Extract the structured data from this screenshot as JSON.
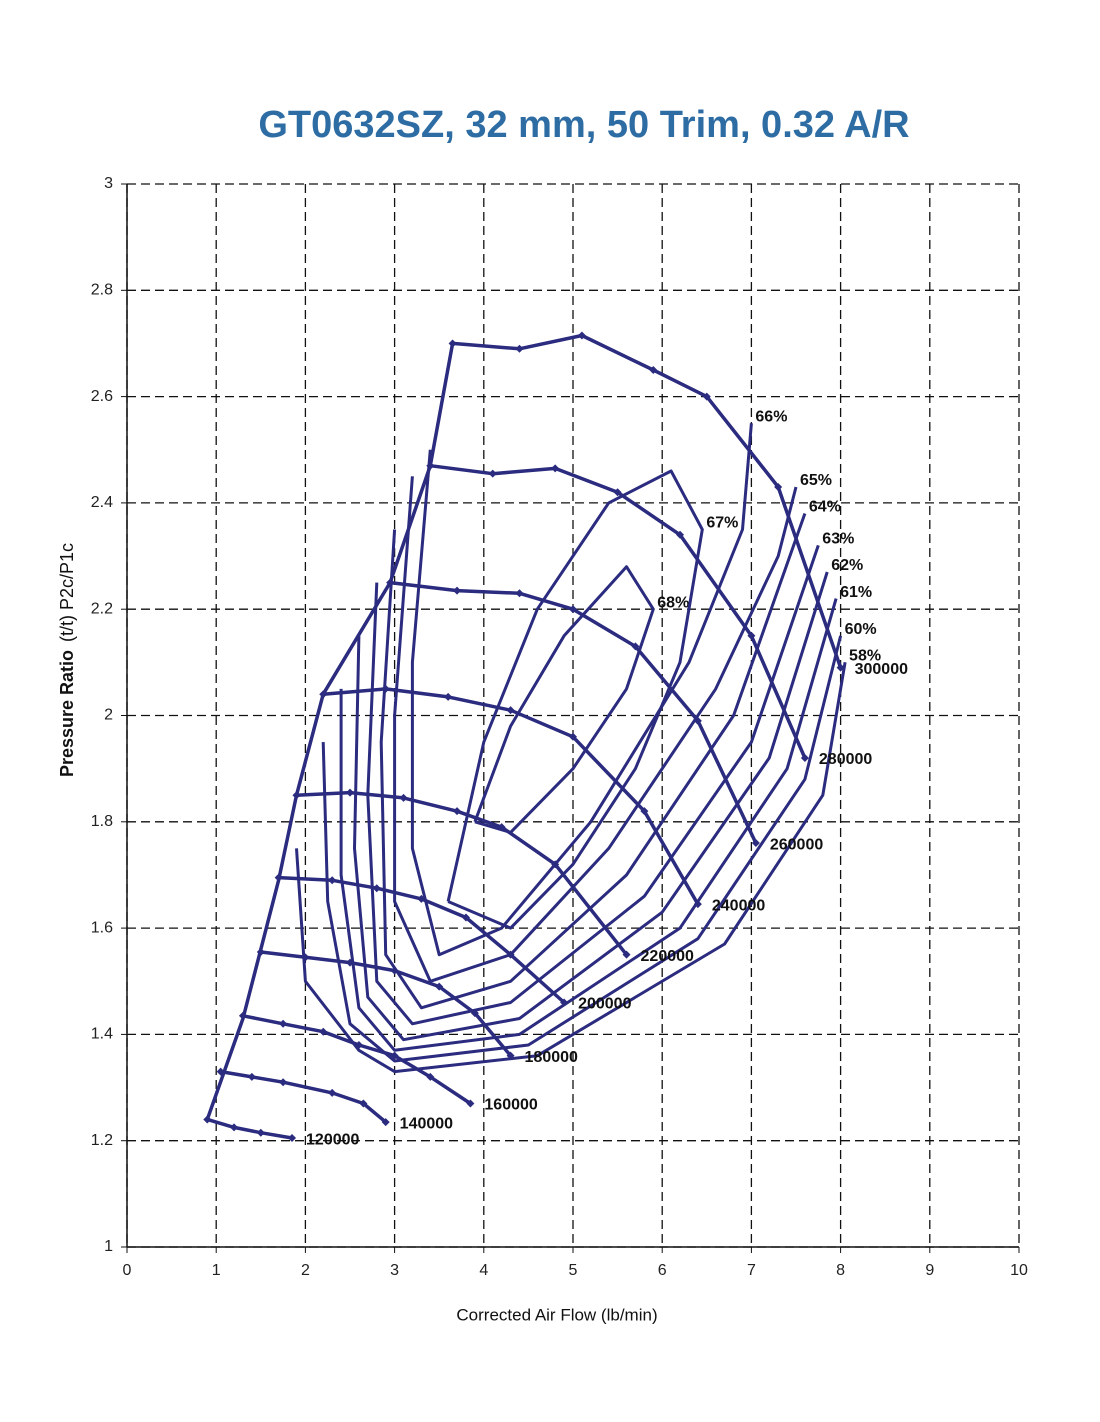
{
  "chart_data": {
    "type": "line",
    "title": "GT0632SZ, 32 mm, 50 Trim, 0.32 A/R",
    "xlabel": "Corrected Air Flow (lb/min)",
    "ylabel": "Pressure Ratio",
    "ylabel_note": "(t/t) P2c/P1c",
    "xlim": [
      0,
      10
    ],
    "ylim": [
      1,
      3
    ],
    "xticks": [
      0,
      1,
      2,
      3,
      4,
      5,
      6,
      7,
      8,
      9,
      10
    ],
    "yticks": [
      1,
      1.2,
      1.4,
      1.6,
      1.8,
      2,
      2.2,
      2.4,
      2.6,
      2.8,
      3
    ],
    "grid": true,
    "color": "#2b2b7f",
    "surge_line": {
      "x": [
        0.9,
        1.3,
        1.7,
        1.9,
        2.2,
        2.95,
        3.4,
        3.65
      ],
      "y": [
        1.24,
        1.43,
        1.69,
        1.85,
        2.04,
        2.25,
        2.47,
        2.7
      ]
    },
    "series": [
      {
        "name": "120000",
        "x": [
          0.9,
          1.2,
          1.5,
          1.85
        ],
        "y": [
          1.24,
          1.225,
          1.215,
          1.205
        ]
      },
      {
        "name": "140000",
        "x": [
          1.05,
          1.4,
          1.75,
          2.3,
          2.65,
          2.9
        ],
        "y": [
          1.33,
          1.32,
          1.31,
          1.29,
          1.27,
          1.235
        ]
      },
      {
        "name": "160000",
        "x": [
          1.3,
          1.75,
          2.2,
          2.6,
          3.0,
          3.4,
          3.85
        ],
        "y": [
          1.435,
          1.42,
          1.405,
          1.38,
          1.36,
          1.32,
          1.27
        ]
      },
      {
        "name": "180000",
        "x": [
          1.5,
          2.0,
          2.5,
          3.0,
          3.5,
          3.9,
          4.3
        ],
        "y": [
          1.555,
          1.545,
          1.535,
          1.52,
          1.49,
          1.44,
          1.36
        ]
      },
      {
        "name": "200000",
        "x": [
          1.7,
          2.3,
          2.8,
          3.3,
          3.8,
          4.3,
          4.9
        ],
        "y": [
          1.695,
          1.69,
          1.675,
          1.655,
          1.62,
          1.55,
          1.46
        ]
      },
      {
        "name": "220000",
        "x": [
          1.9,
          2.5,
          3.1,
          3.7,
          4.2,
          4.8,
          5.6
        ],
        "y": [
          1.85,
          1.855,
          1.845,
          1.82,
          1.79,
          1.72,
          1.55
        ]
      },
      {
        "name": "240000",
        "x": [
          2.2,
          2.9,
          3.6,
          4.3,
          5.0,
          5.8,
          6.4
        ],
        "y": [
          2.04,
          2.05,
          2.035,
          2.01,
          1.96,
          1.82,
          1.645
        ]
      },
      {
        "name": "260000",
        "x": [
          2.95,
          3.7,
          4.4,
          5.0,
          5.7,
          6.4,
          7.05
        ],
        "y": [
          2.25,
          2.235,
          2.23,
          2.2,
          2.13,
          1.99,
          1.76
        ]
      },
      {
        "name": "280000",
        "x": [
          3.4,
          4.1,
          4.8,
          5.5,
          6.2,
          7.0,
          7.6
        ],
        "y": [
          2.47,
          2.455,
          2.465,
          2.42,
          2.34,
          2.15,
          1.92
        ]
      },
      {
        "name": "300000",
        "x": [
          3.65,
          4.4,
          5.1,
          5.9,
          6.5,
          7.3,
          8.0
        ],
        "y": [
          2.7,
          2.69,
          2.715,
          2.65,
          2.6,
          2.43,
          2.09
        ]
      }
    ],
    "efficiency_contours": [
      {
        "label": "68%",
        "x": [
          3.9,
          4.3,
          4.9,
          5.6,
          5.9,
          5.6,
          5.0,
          4.3,
          3.9
        ],
        "y": [
          1.8,
          1.98,
          2.15,
          2.28,
          2.2,
          2.05,
          1.9,
          1.78,
          1.8
        ]
      },
      {
        "label": "67%",
        "x": [
          3.6,
          4.0,
          4.6,
          5.4,
          6.1,
          6.45,
          6.2,
          5.7,
          5.0,
          4.3,
          3.6
        ],
        "y": [
          1.65,
          1.95,
          2.2,
          2.4,
          2.46,
          2.35,
          2.1,
          1.9,
          1.72,
          1.6,
          1.65
        ]
      },
      {
        "label": "66%",
        "x": [
          3.4,
          3.2,
          3.2,
          3.5,
          4.2,
          5.2,
          6.3,
          6.9,
          7.0
        ],
        "y": [
          2.5,
          2.1,
          1.75,
          1.55,
          1.6,
          1.8,
          2.1,
          2.35,
          2.55
        ]
      },
      {
        "label": "65%",
        "x": [
          3.2,
          3.0,
          3.0,
          3.4,
          4.3,
          5.4,
          6.6,
          7.3,
          7.5
        ],
        "y": [
          2.45,
          2.0,
          1.65,
          1.5,
          1.55,
          1.75,
          2.05,
          2.3,
          2.43
        ]
      },
      {
        "label": "64%",
        "x": [
          3.0,
          2.85,
          2.9,
          3.3,
          4.3,
          5.6,
          6.8,
          7.6
        ],
        "y": [
          2.35,
          1.95,
          1.55,
          1.45,
          1.5,
          1.7,
          2.0,
          2.38
        ]
      },
      {
        "label": "63%",
        "x": [
          2.8,
          2.7,
          2.8,
          3.2,
          4.3,
          5.8,
          7.0,
          7.75
        ],
        "y": [
          2.25,
          1.85,
          1.5,
          1.42,
          1.46,
          1.66,
          1.95,
          2.32
        ]
      },
      {
        "label": "62%",
        "x": [
          2.6,
          2.55,
          2.7,
          3.1,
          4.4,
          6.0,
          7.2,
          7.85
        ],
        "y": [
          2.15,
          1.75,
          1.47,
          1.39,
          1.43,
          1.63,
          1.92,
          2.27
        ]
      },
      {
        "label": "61%",
        "x": [
          2.4,
          2.4,
          2.6,
          3.0,
          4.4,
          6.2,
          7.4,
          7.95
        ],
        "y": [
          2.05,
          1.7,
          1.45,
          1.37,
          1.4,
          1.6,
          1.9,
          2.22
        ]
      },
      {
        "label": "60%",
        "x": [
          2.2,
          2.25,
          2.5,
          3.0,
          4.5,
          6.4,
          7.6,
          8.0
        ],
        "y": [
          1.95,
          1.65,
          1.42,
          1.35,
          1.38,
          1.58,
          1.88,
          2.15
        ]
      },
      {
        "label": "58%",
        "x": [
          1.9,
          2.0,
          2.6,
          3.0,
          4.6,
          6.7,
          7.8,
          8.05
        ],
        "y": [
          1.75,
          1.5,
          1.37,
          1.33,
          1.36,
          1.57,
          1.85,
          2.1
        ]
      }
    ]
  }
}
